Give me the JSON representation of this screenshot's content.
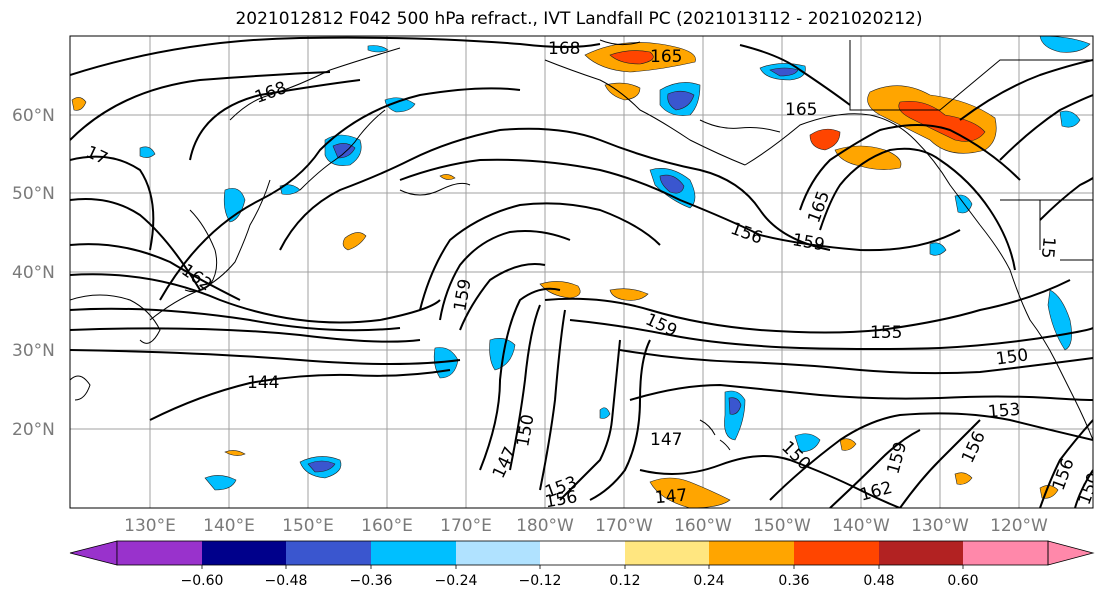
{
  "title": "2021012812 F042 500 hPa refract., IVT Landfall PC (2021013112 - 2021020212)",
  "lat_labels": [
    "60°N",
    "50°N",
    "40°N",
    "30°N",
    "20°N"
  ],
  "lon_labels": [
    "130°E",
    "140°E",
    "150°E",
    "160°E",
    "170°E",
    "180°W",
    "170°W",
    "160°W",
    "150°W",
    "140°W",
    "130°W",
    "120°W"
  ],
  "contour_labels": [
    "168",
    "165",
    "168",
    "17",
    "165",
    "162",
    "159",
    "156",
    "159",
    "165",
    "155",
    "144",
    "150",
    "159",
    "153",
    "150",
    "147",
    "156",
    "159",
    "162",
    "153",
    "156",
    "147",
    "150",
    "156",
    "150",
    "147",
    "15"
  ],
  "colorbar": {
    "colors": [
      "#9932cc",
      "#00008b",
      "#3a56cf",
      "#00bfff",
      "#b0e2ff",
      "#ffffff",
      "#ffe680",
      "#ffa500",
      "#ff4500",
      "#b22222",
      "#ff88aa"
    ],
    "tick_labels": [
      "−0.60",
      "−0.48",
      "−0.36",
      "−0.24",
      "−0.12",
      "0.12",
      "0.24",
      "0.36",
      "0.48",
      "0.60"
    ]
  }
}
